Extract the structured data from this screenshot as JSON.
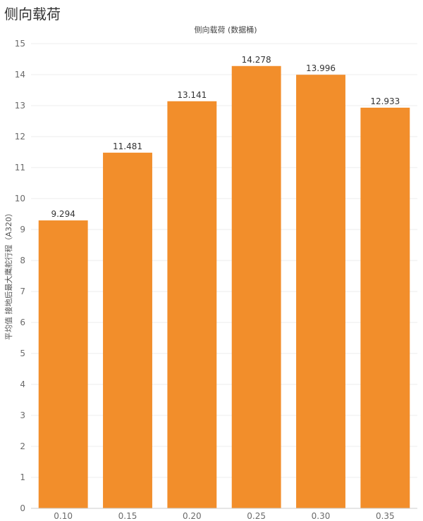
{
  "page": {
    "title": "侧向载荷"
  },
  "chart_data": {
    "type": "bar",
    "title": "侧向载荷",
    "xlabel": "侧向载荷 (数据桶)",
    "ylabel": "平均值 接地后最大鹰舵行程（A320）",
    "categories": [
      "0.10",
      "0.15",
      "0.20",
      "0.25",
      "0.30",
      "0.35"
    ],
    "values": [
      9.294,
      11.481,
      13.141,
      14.278,
      13.996,
      12.933
    ],
    "data_labels": [
      "9.294",
      "11.481",
      "13.141",
      "14.278",
      "13.996",
      "12.933"
    ],
    "ylim": [
      0,
      15
    ],
    "yticks": [
      "0",
      "1",
      "2",
      "3",
      "4",
      "5",
      "6",
      "7",
      "8",
      "9",
      "10",
      "11",
      "12",
      "13",
      "14",
      "15"
    ],
    "grid": true,
    "legend": "none",
    "colors": {
      "bar": "#F28E2B",
      "grid": "#eeeeee",
      "baseline": "#cccccc"
    }
  }
}
